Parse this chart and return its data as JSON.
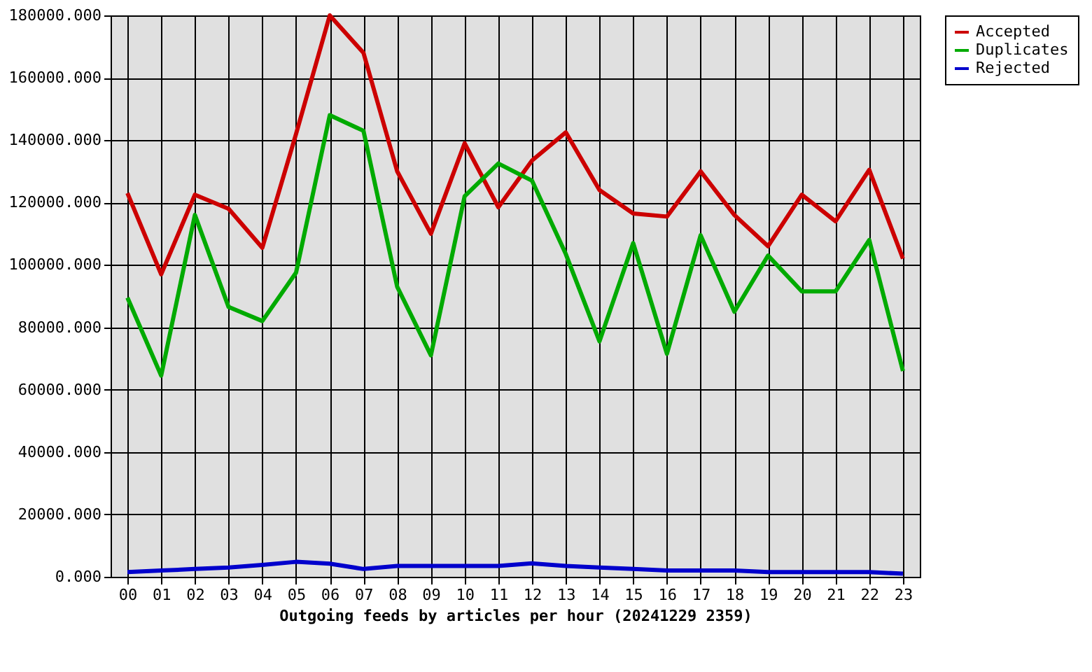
{
  "chart_data": {
    "type": "line",
    "xlabel": "Outgoing feeds by articles per hour (20241229 2359)",
    "categories": [
      "00",
      "01",
      "02",
      "03",
      "04",
      "05",
      "06",
      "07",
      "08",
      "09",
      "10",
      "11",
      "12",
      "13",
      "14",
      "15",
      "16",
      "17",
      "18",
      "19",
      "20",
      "21",
      "22",
      "23"
    ],
    "series": [
      {
        "name": "Accepted",
        "color": "#cc0000",
        "values": [
          123000,
          97000,
          122500,
          118000,
          105500,
          142000,
          180000,
          168000,
          130000,
          110000,
          139000,
          118500,
          133500,
          142500,
          124000,
          116500,
          115500,
          130000,
          116000,
          106000,
          122500,
          114000,
          130500,
          102000
        ]
      },
      {
        "name": "Duplicates",
        "color": "#00aa00",
        "values": [
          89500,
          64500,
          116000,
          86500,
          82000,
          97500,
          148000,
          143000,
          93000,
          71000,
          122000,
          132500,
          127000,
          103500,
          75500,
          107000,
          71500,
          109500,
          85000,
          103000,
          91500,
          91500,
          108000,
          66000
        ]
      },
      {
        "name": "Rejected",
        "color": "#0000cc",
        "values": [
          1500,
          2000,
          2500,
          3000,
          3800,
          4800,
          4200,
          2500,
          3500,
          3500,
          3500,
          3500,
          4300,
          3500,
          3000,
          2500,
          2000,
          2000,
          2000,
          1500,
          1500,
          1500,
          1500,
          1000
        ]
      }
    ],
    "ylim": [
      0,
      180000
    ],
    "yticks": [
      {
        "value": 0,
        "label": "0.000"
      },
      {
        "value": 20000,
        "label": "20000.000"
      },
      {
        "value": 40000,
        "label": "40000.000"
      },
      {
        "value": 60000,
        "label": "60000.000"
      },
      {
        "value": 80000,
        "label": "80000.000"
      },
      {
        "value": 100000,
        "label": "100000.000"
      },
      {
        "value": 120000,
        "label": "120000.000"
      },
      {
        "value": 140000,
        "label": "140000.000"
      },
      {
        "value": 160000,
        "label": "160000.000"
      },
      {
        "value": 180000,
        "label": "180000.000"
      }
    ],
    "grid": true,
    "legend": "top right",
    "line_style": "solid"
  }
}
